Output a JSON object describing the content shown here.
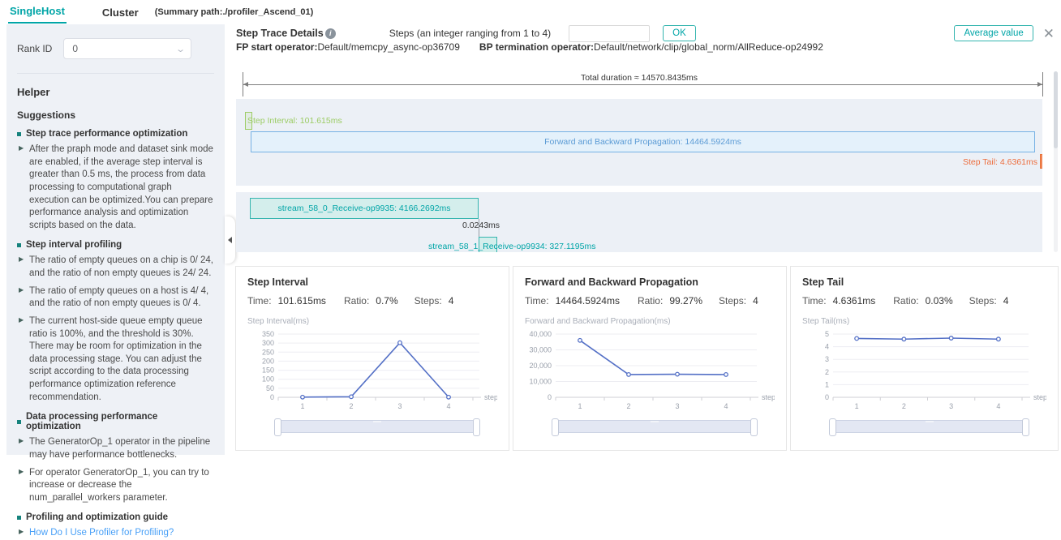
{
  "tabs": {
    "singlehost": "SingleHost",
    "cluster": "Cluster",
    "summary_path": "(Summary path:./profiler_Ascend_01)"
  },
  "sidebar": {
    "rank_id_label": "Rank ID",
    "rank_id_value": "0",
    "helper_title": "Helper",
    "suggestions_title": "Suggestions",
    "sections": [
      {
        "title": "Step trace performance optimization",
        "items": [
          "After the praph mode and dataset sink mode are enabled, if the average step interval is greater than 0.5 ms, the process from data processing to computational graph execution can be optimized.You can prepare performance analysis and optimization scripts based on the data."
        ]
      },
      {
        "title": "Step interval profiling",
        "items": [
          "The ratio of empty queues on a chip is 0/ 24, and the ratio of non empty queues is 24/ 24.",
          "The ratio of empty queues on a host is 4/ 4, and the ratio of non empty queues is 0/ 4.",
          "The current host-side queue empty queue ratio is 100%, and the threshold is 30%. There may be room for optimization in the data processing stage. You can adjust the script according to the data processing performance optimization reference recommendation."
        ]
      },
      {
        "title": "Data processing performance optimization",
        "items": [
          "The GeneratorOp_1 operator in the pipeline may have performance bottlenecks.",
          "For operator GeneratorOp_1, you can try to increase or decrease the num_parallel_workers parameter."
        ]
      },
      {
        "title": "Profiling and optimization guide",
        "items": [
          "How Do I Use Profiler for Profiling?"
        ]
      }
    ]
  },
  "header": {
    "title": "Step Trace Details",
    "steps_hint": "Steps (an integer ranging from 1 to 4)",
    "steps_input_value": "",
    "ok_label": "OK",
    "average_value_label": "Average value",
    "fp_label": "FP start operator:",
    "fp_value": "Default/memcpy_async-op36709",
    "bp_label": "BP termination operator:",
    "bp_value": "Default/network/clip/global_norm/AllReduce-op24992"
  },
  "timeline": {
    "total_duration": "Total duration ≈ 14570.8435ms",
    "step_interval_label": "Step Interval: 101.615ms",
    "fbp_label": "Forward and Backward Propagation: 14464.5924ms",
    "step_tail_label": "Step Tail: 4.6361ms",
    "stream1_label": "stream_58_0_Receive-op9935: 4166.2692ms",
    "gap_label": "0.0243ms",
    "stream2_label": "stream_58_1_Receive-op9934: 327.1195ms"
  },
  "panel_stat_labels": {
    "time": "Time:",
    "ratio": "Ratio:",
    "steps": "Steps:"
  },
  "panels": [
    {
      "title": "Step Interval",
      "time": "101.615ms",
      "ratio": "0.7%",
      "steps": "4"
    },
    {
      "title": "Forward and Backward Propagation",
      "time": "14464.5924ms",
      "ratio": "99.27%",
      "steps": "4"
    },
    {
      "title": "Step Tail",
      "time": "4.6361ms",
      "ratio": "0.03%",
      "steps": "4"
    }
  ],
  "chart_data": [
    {
      "type": "line",
      "title": "Step Interval",
      "x": [
        1,
        2,
        3,
        4
      ],
      "values": [
        1,
        3,
        302,
        1
      ],
      "xlabel": "step",
      "ylabel": "Step Interval(ms)",
      "ylim": [
        0,
        350
      ],
      "yticks": [
        0,
        50,
        100,
        150,
        200,
        250,
        300,
        350
      ],
      "legend": "none",
      "grid": true
    },
    {
      "type": "line",
      "title": "Forward and Backward Propagation",
      "x": [
        1,
        2,
        3,
        4
      ],
      "values": [
        36000,
        14400,
        14600,
        14400
      ],
      "xlabel": "step",
      "ylabel": "Forward and Backward Propagation(ms)",
      "ylim": [
        0,
        40000
      ],
      "yticks": [
        0,
        10000,
        20000,
        30000,
        40000
      ],
      "ytick_labels": [
        "0",
        "10,000",
        "20,000",
        "30,000",
        "40,000"
      ],
      "legend": "none",
      "grid": true
    },
    {
      "type": "line",
      "title": "Step Tail",
      "x": [
        1,
        2,
        3,
        4
      ],
      "values": [
        4.65,
        4.6,
        4.68,
        4.6
      ],
      "xlabel": "step",
      "ylabel": "Step Tail(ms)",
      "ylim": [
        0,
        5
      ],
      "yticks": [
        0,
        1,
        2,
        3,
        4,
        5
      ],
      "legend": "none",
      "grid": true
    }
  ],
  "colors": {
    "accent": "#00a5a7",
    "chart_line": "#5470c6",
    "step_interval_green": "#9ccc65",
    "fbp_blue": "#5b9bd5",
    "step_tail_orange": "#ed6d3d",
    "stream_teal": "#00a5a7",
    "link_blue": "#49a0f7"
  }
}
